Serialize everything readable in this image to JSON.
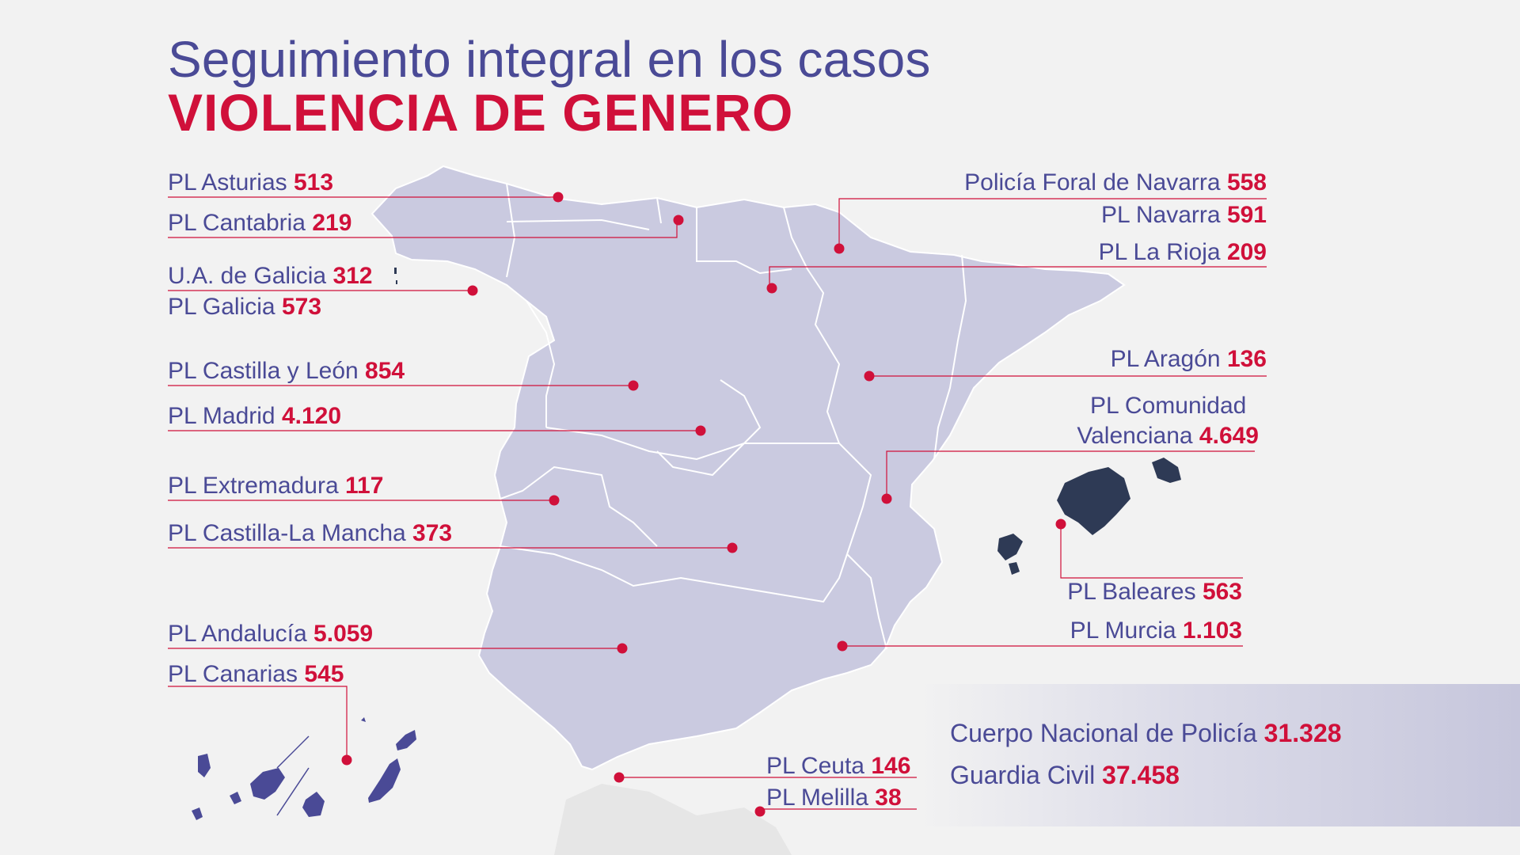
{
  "title": {
    "line1": "Seguimiento integral en los casos",
    "line2": "VIOLENCIA DE GENERO"
  },
  "colors": {
    "map_fill": "#cacae0",
    "islands_dark": "#2e3a55",
    "canarias": "#4a4a96",
    "accent": "#d0103a",
    "text": "#4a4a96"
  },
  "regions_left": [
    {
      "label": "PL Asturias",
      "value": "513"
    },
    {
      "label": "PL Cantabria",
      "value": "219"
    },
    {
      "label": "U.A. de Galicia",
      "value": "312"
    },
    {
      "label": "PL Galicia",
      "value": "573"
    },
    {
      "label": "PL Castilla y León",
      "value": "854"
    },
    {
      "label": "PL Madrid",
      "value": "4.120"
    },
    {
      "label": "PL Extremadura",
      "value": "117"
    },
    {
      "label": "PL Castilla-La Mancha",
      "value": "373"
    },
    {
      "label": "PL Andalucía",
      "value": "5.059"
    },
    {
      "label": "PL Canarias",
      "value": "545"
    }
  ],
  "regions_right": [
    {
      "label": "Policía Foral de Navarra",
      "value": "558"
    },
    {
      "label": "PL Navarra",
      "value": "591"
    },
    {
      "label": "PL La Rioja",
      "value": "209"
    },
    {
      "label": "PL Aragón",
      "value": "136"
    },
    {
      "label": "PL Comunidad",
      "label2": "Valenciana",
      "value": "4.649"
    },
    {
      "label": "PL Baleares",
      "value": "563"
    },
    {
      "label": "PL Murcia",
      "value": "1.103"
    },
    {
      "label": "PL Ceuta",
      "value": "146"
    },
    {
      "label": "PL Melilla",
      "value": "38"
    }
  ],
  "totals": [
    {
      "label": "Cuerpo Nacional de Policía",
      "value": "31.328"
    },
    {
      "label": "Guardia Civil",
      "value": "37.458"
    }
  ]
}
